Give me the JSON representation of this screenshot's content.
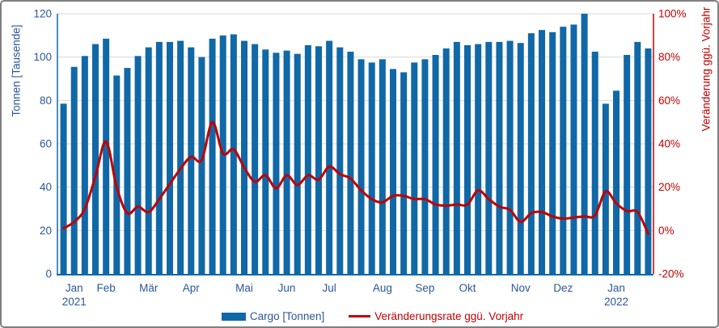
{
  "colors": {
    "bar_blue": "#1068a7",
    "text_blue": "#2b5797",
    "red": "#c00000",
    "gridline": "#d9d9d9"
  },
  "chart_data": {
    "type": "combo",
    "x_unit": "week",
    "months": [
      {
        "label": "Jan",
        "year_label": "2021",
        "week_index": 2
      },
      {
        "label": "Feb",
        "week_index": 5
      },
      {
        "label": "Mär",
        "week_index": 9
      },
      {
        "label": "Apr",
        "week_index": 13
      },
      {
        "label": "Mai",
        "week_index": 18
      },
      {
        "label": "Jun",
        "week_index": 22
      },
      {
        "label": "Jul",
        "week_index": 26
      },
      {
        "label": "Aug",
        "week_index": 31
      },
      {
        "label": "Sep",
        "week_index": 35
      },
      {
        "label": "Okt",
        "week_index": 39
      },
      {
        "label": "Nov",
        "week_index": 44
      },
      {
        "label": "Dez",
        "week_index": 48
      },
      {
        "label": "Jan",
        "year_label": "2022",
        "week_index": 53
      }
    ],
    "series": [
      {
        "name": "Cargo [Tonnen]",
        "type": "bar",
        "axis": "left",
        "values": [
          78.5,
          95.5,
          100.5,
          106,
          108.5,
          91.5,
          95,
          100.5,
          104.5,
          107,
          107,
          107.5,
          104.5,
          100,
          108.5,
          110,
          110.5,
          107.5,
          106,
          103.5,
          102,
          103,
          101.5,
          105.5,
          105,
          107.5,
          104.5,
          102.5,
          99,
          97.5,
          99,
          94.5,
          93,
          97.5,
          99,
          101,
          104,
          107,
          105.5,
          106,
          107,
          107,
          107.5,
          106.5,
          111,
          112.5,
          111.5,
          114,
          115,
          120,
          102.5,
          78.5,
          84.5,
          101,
          107,
          104
        ]
      },
      {
        "name": "Veränderungsrate ggü. Vorjahr",
        "type": "line",
        "axis": "right",
        "values": [
          1,
          4,
          10,
          25,
          41,
          20,
          8,
          11,
          8.5,
          14.5,
          21.5,
          28.5,
          34,
          32.5,
          50,
          35.5,
          37.5,
          29,
          22.5,
          25.5,
          19.5,
          25.5,
          21,
          25.5,
          23.5,
          29.5,
          26,
          24,
          18.5,
          14.5,
          13,
          16,
          16,
          14.5,
          14.5,
          12,
          11.5,
          12,
          12,
          18.5,
          14.5,
          11,
          9.5,
          4,
          8,
          8.5,
          6.5,
          5.5,
          6,
          6.5,
          7,
          18,
          12.5,
          9,
          8.5,
          -1.5
        ]
      }
    ],
    "left_axis": {
      "title": "Tonnen [Tausende]",
      "min": 0,
      "max": 120,
      "step": 20,
      "ticks": [
        "0",
        "20",
        "40",
        "60",
        "80",
        "100",
        "120"
      ]
    },
    "right_axis": {
      "title": "Veränderung ggü. Vorjahr",
      "min": -20,
      "max": 100,
      "step": 20,
      "ticks": [
        "-20%",
        "0%",
        "20%",
        "40%",
        "60%",
        "80%",
        "100%"
      ]
    },
    "grid": "horizontal",
    "legend_position": "bottom",
    "legend": {
      "bar_label": "Cargo [Tonnen]",
      "line_label": "Veränderungsrate ggü. Vorjahr"
    }
  }
}
